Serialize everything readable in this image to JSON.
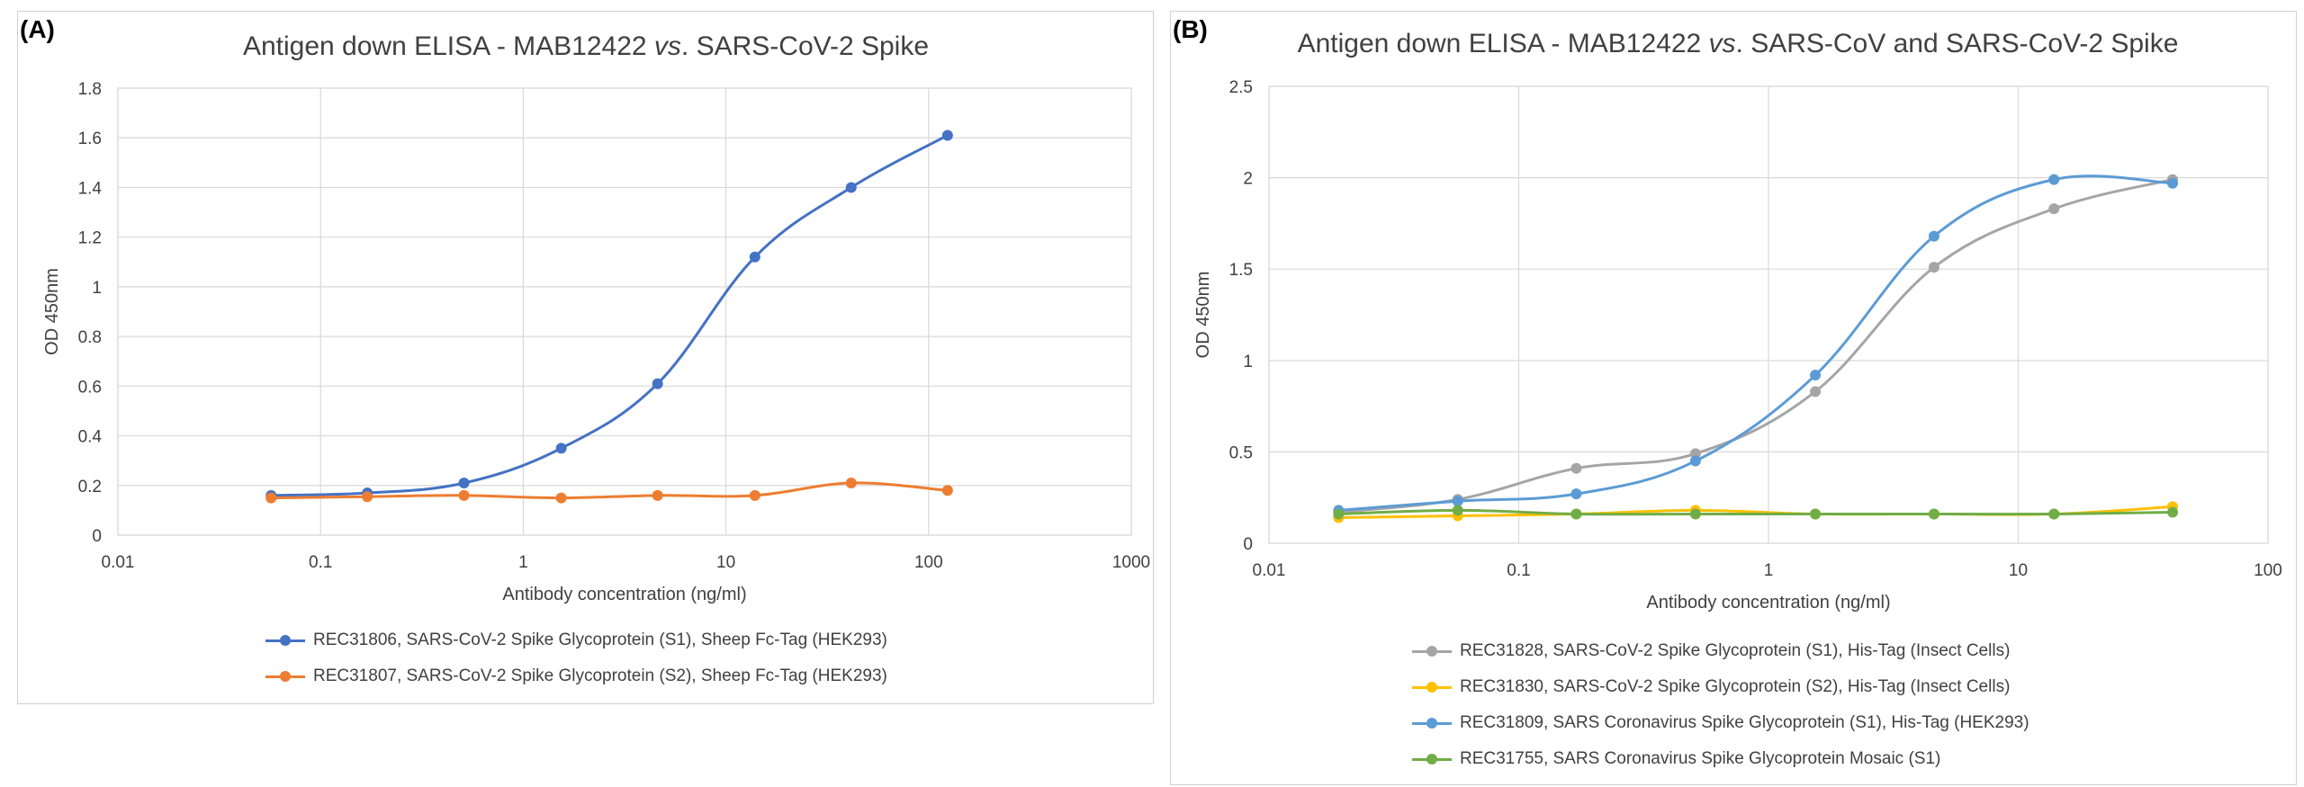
{
  "chart_data": [
    {
      "panel_label": "(A)",
      "type": "line",
      "title_parts": [
        "Antigen down ELISA - MAB12422 ",
        "vs",
        ". SARS-CoV-2 Spike"
      ],
      "xlabel": "Antibody concentration (ng/ml)",
      "ylabel": "OD 450nm",
      "x_scale": "log",
      "xlim": [
        0.01,
        1000
      ],
      "ylim": [
        0,
        1.8
      ],
      "x_ticks": [
        "0.01",
        "0.1",
        "1",
        "10",
        "100",
        "1000"
      ],
      "y_ticks": [
        "0",
        "0.2",
        "0.4",
        "0.6",
        "0.8",
        "1",
        "1.2",
        "1.4",
        "1.6",
        "1.8"
      ],
      "grid": true,
      "legend_position": "bottom",
      "x": [
        0.057,
        0.17,
        0.51,
        1.54,
        4.6,
        13.9,
        41.5,
        124
      ],
      "series": [
        {
          "name": "REC31806, SARS-CoV-2 Spike Glycoprotein (S1), Sheep Fc-Tag (HEK293)",
          "color": "#4472c4",
          "values": [
            0.16,
            0.17,
            0.21,
            0.35,
            0.61,
            1.12,
            1.4,
            1.61
          ]
        },
        {
          "name": "REC31807, SARS-CoV-2 Spike Glycoprotein (S2), Sheep Fc-Tag (HEK293)",
          "color": "#ed7d31",
          "values": [
            0.15,
            0.155,
            0.16,
            0.15,
            0.16,
            0.16,
            0.21,
            0.18
          ]
        }
      ]
    },
    {
      "panel_label": "(B)",
      "type": "line",
      "title_parts": [
        "Antigen down ELISA - MAB12422 ",
        "vs",
        ". SARS-CoV and SARS-CoV-2 Spike"
      ],
      "xlabel": "Antibody concentration (ng/ml)",
      "ylabel": "OD 450nm",
      "x_scale": "log",
      "xlim": [
        0.01,
        100
      ],
      "ylim": [
        0,
        2.5
      ],
      "x_ticks": [
        "0.01",
        "0.1",
        "1",
        "10",
        "100"
      ],
      "y_ticks": [
        "0",
        "0.5",
        "1",
        "1.5",
        "2",
        "2.5"
      ],
      "grid": true,
      "legend_position": "bottom",
      "x": [
        0.019,
        0.057,
        0.17,
        0.51,
        1.54,
        4.6,
        13.9,
        41.5
      ],
      "series": [
        {
          "name": "REC31828, SARS-CoV-2 Spike Glycoprotein (S1), His-Tag (Insect Cells)",
          "color": "#a5a5a5",
          "values": [
            0.17,
            0.24,
            0.41,
            0.49,
            0.83,
            1.51,
            1.83,
            1.99
          ]
        },
        {
          "name": "REC31830, SARS-CoV-2 Spike Glycoprotein (S2), His-Tag (Insect Cells)",
          "color": "#ffc000",
          "values": [
            0.14,
            0.15,
            0.16,
            0.18,
            0.16,
            0.16,
            0.16,
            0.2
          ]
        },
        {
          "name": "REC31809, SARS Coronavirus Spike Glycoprotein (S1), His-Tag (HEK293)",
          "color": "#5b9bd5",
          "values": [
            0.18,
            0.23,
            0.27,
            0.45,
            0.92,
            1.68,
            1.99,
            1.97
          ]
        },
        {
          "name": "REC31755, SARS Coronavirus Spike Glycoprotein Mosaic (S1)",
          "color": "#70ad47",
          "values": [
            0.16,
            0.18,
            0.16,
            0.16,
            0.16,
            0.16,
            0.16,
            0.17
          ]
        }
      ]
    }
  ]
}
